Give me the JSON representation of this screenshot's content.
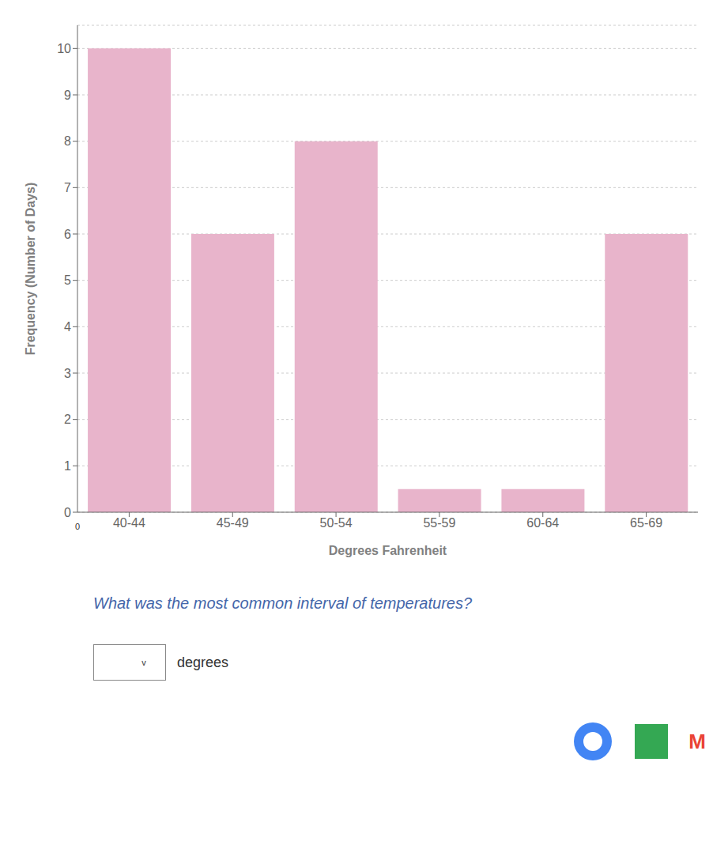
{
  "chart_data": {
    "type": "bar",
    "categories": [
      "40-44",
      "45-49",
      "50-54",
      "55-59",
      "60-64",
      "65-69"
    ],
    "values": [
      10,
      6,
      8,
      0.5,
      0.5,
      6
    ],
    "color": "#e8b4cb",
    "xlabel": "Degrees Fahrenheit",
    "ylabel": "Frequency (Number of Days)",
    "ylim": [
      0,
      10.5
    ],
    "yticks": [
      0,
      1,
      2,
      3,
      4,
      5,
      6,
      7,
      8,
      9,
      10
    ],
    "grid": true,
    "annotations": [
      "0",
      "What was the most common interval of temperatures?",
      "v",
      "degrees",
      "M"
    ]
  }
}
